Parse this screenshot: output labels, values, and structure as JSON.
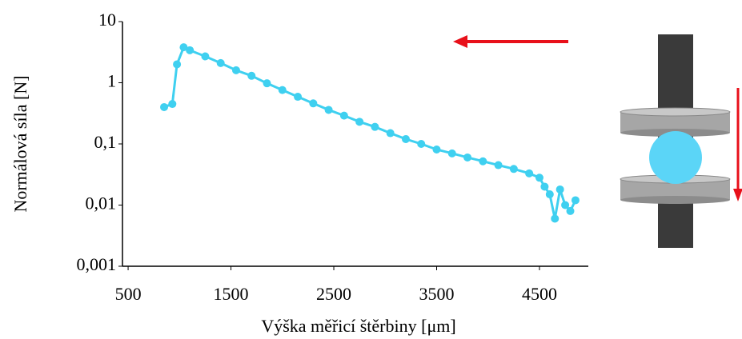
{
  "chart_data": {
    "type": "line",
    "xlabel": "Výška měřicí štěrbiny [μm]",
    "ylabel": "Normálová síla [N]",
    "log_y": true,
    "xlim": [
      445,
      4975
    ],
    "xticks": [
      500,
      1500,
      2500,
      3500,
      4500
    ],
    "ylim": [
      0.001,
      10
    ],
    "yticks": [
      {
        "value": 0.001,
        "label": "0,001"
      },
      {
        "value": 0.01,
        "label": "0,01"
      },
      {
        "value": 0.1,
        "label": "0,1"
      },
      1,
      10
    ],
    "series": [
      {
        "color": "#3fd0f0",
        "x": [
          850,
          930,
          975,
          1040,
          1100,
          1250,
          1400,
          1550,
          1700,
          1850,
          2000,
          2150,
          2300,
          2450,
          2600,
          2750,
          2900,
          3050,
          3200,
          3350,
          3500,
          3650,
          3800,
          3950,
          4100,
          4250,
          4400,
          4500,
          4550,
          4600,
          4650,
          4700,
          4750,
          4800,
          4850
        ],
        "values": [
          0.4,
          0.45,
          2,
          3.8,
          3.4,
          2.7,
          2.1,
          1.6,
          1.3,
          0.98,
          0.76,
          0.59,
          0.46,
          0.36,
          0.29,
          0.23,
          0.19,
          0.15,
          0.12,
          0.1,
          0.081,
          0.07,
          0.06,
          0.052,
          0.045,
          0.039,
          0.033,
          0.028,
          0.02,
          0.015,
          0.006,
          0.018,
          0.01,
          0.008,
          0.012
        ]
      }
    ]
  }
}
